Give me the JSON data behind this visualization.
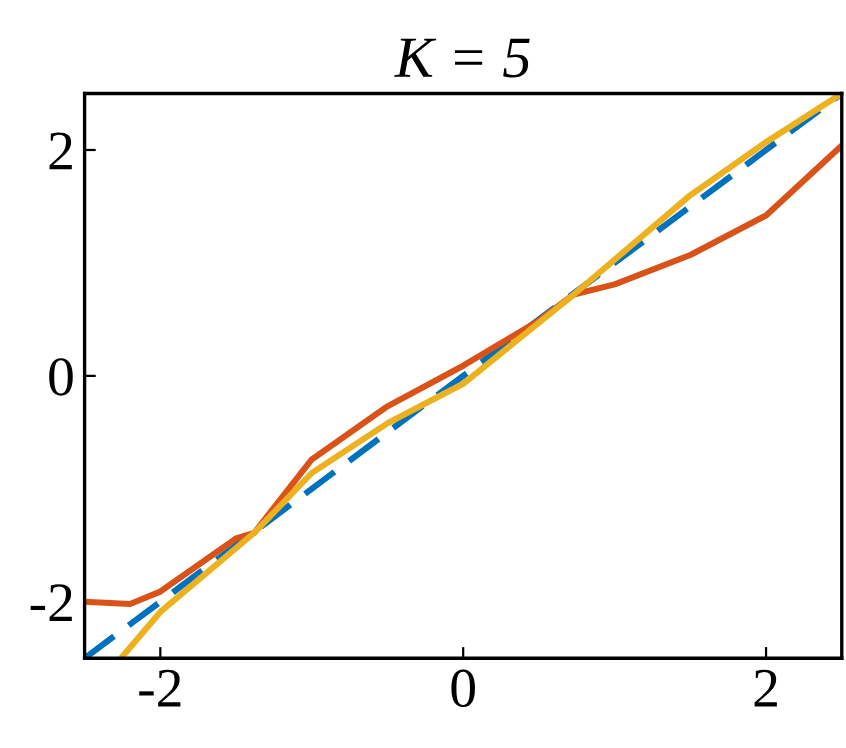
{
  "chart_data": {
    "type": "line",
    "title": "K = 5",
    "xlim": [
      -2.5,
      2.5
    ],
    "ylim": [
      -2.5,
      2.5
    ],
    "xticks": [
      {
        "value": -2,
        "label": "-2"
      },
      0,
      2
    ],
    "yticks": [
      {
        "value": -2,
        "label": "-2"
      },
      0,
      2
    ],
    "grid": false,
    "legend": false,
    "series": [
      {
        "color": "#0072bd",
        "line_style": "dashed",
        "x": [
          -2.5,
          2.5
        ],
        "values": [
          -2.5,
          2.5
        ]
      },
      {
        "color": "#d95319",
        "line_style": "solid",
        "x": [
          -2.5,
          -2.2,
          -2.0,
          -1.5,
          -1.38,
          -1.0,
          -0.5,
          0.0,
          0.5,
          0.73,
          1.0,
          1.5,
          2.0,
          2.5
        ],
        "values": [
          -2.0,
          -2.02,
          -1.91,
          -1.44,
          -1.39,
          -0.74,
          -0.27,
          0.09,
          0.49,
          0.72,
          0.81,
          1.07,
          1.42,
          2.04
        ]
      },
      {
        "color": "#edb120",
        "line_style": "solid",
        "x": [
          -2.26,
          -2.0,
          -1.38,
          -1.0,
          -0.5,
          0.0,
          0.73,
          1.5,
          2.0,
          2.5
        ],
        "values": [
          -2.5,
          -2.09,
          -1.39,
          -0.86,
          -0.42,
          -0.07,
          0.72,
          1.6,
          2.07,
          2.5
        ]
      }
    ]
  }
}
